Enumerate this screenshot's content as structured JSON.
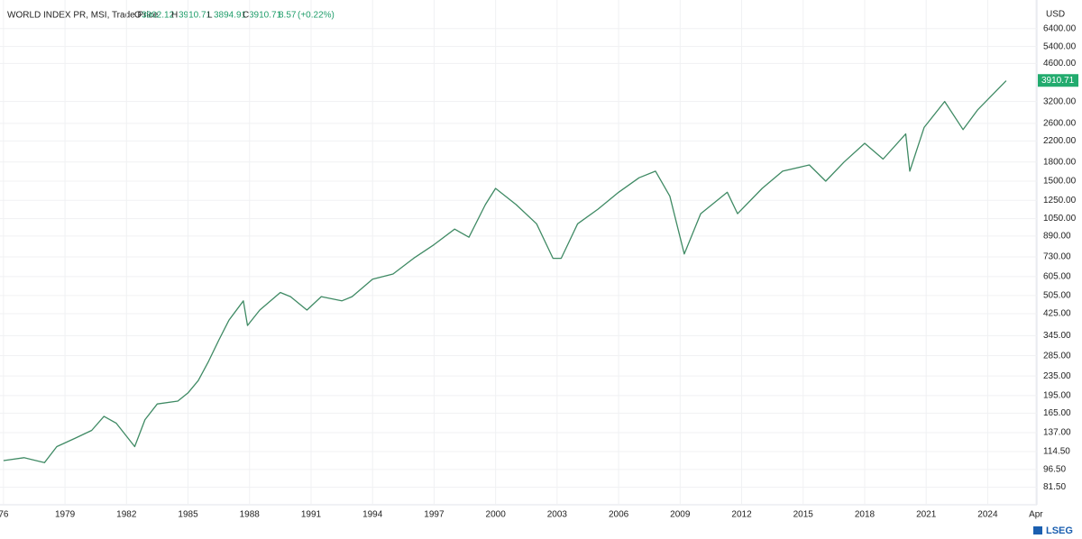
{
  "chart_data": {
    "type": "line",
    "title": "WORLD INDEX PR, MSI, Trade Price",
    "ohlc": {
      "o_label": "O",
      "open": 3902.12,
      "h_label": "H",
      "high": 3910.71,
      "l_label": "L",
      "low": 3894.91,
      "c_label": "C",
      "close": 3910.71,
      "change": 8.57,
      "change_pct": "(+0.22%)"
    },
    "currency": "USD",
    "last_price": 3910.71,
    "logo": "LSEG",
    "log_scale": true,
    "grid": true,
    "xlim": [
      1975.83,
      2026.4
    ],
    "ylim": [
      69,
      7850
    ],
    "xticks": [
      {
        "value": 1976,
        "label": "76"
      },
      1979,
      1982,
      1985,
      1988,
      1991,
      1994,
      1997,
      2000,
      2003,
      2006,
      2009,
      2012,
      2015,
      2018,
      2021,
      2024,
      {
        "value": 2026.35,
        "label": "Apr"
      }
    ],
    "yticks": [
      {
        "value": 6400,
        "label": "6400.00"
      },
      {
        "value": 5400,
        "label": "5400.00"
      },
      {
        "value": 4600,
        "label": "4600.00"
      },
      {
        "value": 3200,
        "label": "3200.00"
      },
      {
        "value": 2600,
        "label": "2600.00"
      },
      {
        "value": 2200,
        "label": "2200.00"
      },
      {
        "value": 1800,
        "label": "1800.00"
      },
      {
        "value": 1500,
        "label": "1500.00"
      },
      {
        "value": 1250,
        "label": "1250.00"
      },
      {
        "value": 1050,
        "label": "1050.00"
      },
      {
        "value": 890,
        "label": "890.00"
      },
      {
        "value": 730,
        "label": "730.00"
      },
      {
        "value": 605,
        "label": "605.00"
      },
      {
        "value": 505,
        "label": "505.00"
      },
      {
        "value": 425,
        "label": "425.00"
      },
      {
        "value": 345,
        "label": "345.00"
      },
      {
        "value": 285,
        "label": "285.00"
      },
      {
        "value": 235,
        "label": "235.00"
      },
      {
        "value": 195,
        "label": "195.00"
      },
      {
        "value": 165,
        "label": "165.00"
      },
      {
        "value": 137,
        "label": "137.00"
      },
      {
        "value": 114.5,
        "label": "114.50"
      },
      {
        "value": 96.5,
        "label": "96.50"
      },
      {
        "value": 81.5,
        "label": "81.50"
      }
    ],
    "series": [
      {
        "color": "#3f8a64",
        "x": [
          1976.0,
          1977.0,
          1978.0,
          1978.6,
          1979.5,
          1980.3,
          1980.9,
          1981.5,
          1982.4,
          1982.9,
          1983.5,
          1984.5,
          1985.0,
          1985.5,
          1986.0,
          1986.5,
          1987.0,
          1987.7,
          1987.9,
          1988.5,
          1989.5,
          1990.0,
          1990.8,
          1991.5,
          1992.5,
          1993.0,
          1994.0,
          1995.0,
          1996.0,
          1997.0,
          1998.0,
          1998.7,
          1999.5,
          2000.0,
          2001.0,
          2002.0,
          2002.8,
          2003.2,
          2004.0,
          2005.0,
          2006.0,
          2007.0,
          2007.8,
          2008.5,
          2009.2,
          2010.0,
          2011.3,
          2011.8,
          2013.0,
          2014.0,
          2015.3,
          2016.1,
          2017.0,
          2018.0,
          2018.9,
          2020.0,
          2020.2,
          2020.9,
          2021.9,
          2022.8,
          2023.5,
          2024.9
        ],
        "values": [
          105,
          108,
          103,
          120,
          130,
          140,
          160,
          150,
          120,
          155,
          180,
          185,
          200,
          225,
          270,
          330,
          400,
          480,
          380,
          440,
          520,
          500,
          440,
          500,
          480,
          500,
          590,
          620,
          720,
          820,
          950,
          880,
          1200,
          1400,
          1200,
          1000,
          720,
          720,
          1000,
          1150,
          1350,
          1550,
          1650,
          1300,
          750,
          1100,
          1350,
          1100,
          1400,
          1650,
          1750,
          1500,
          1800,
          2150,
          1850,
          2350,
          1650,
          2500,
          3200,
          2450,
          2950,
          3900
        ]
      }
    ]
  }
}
